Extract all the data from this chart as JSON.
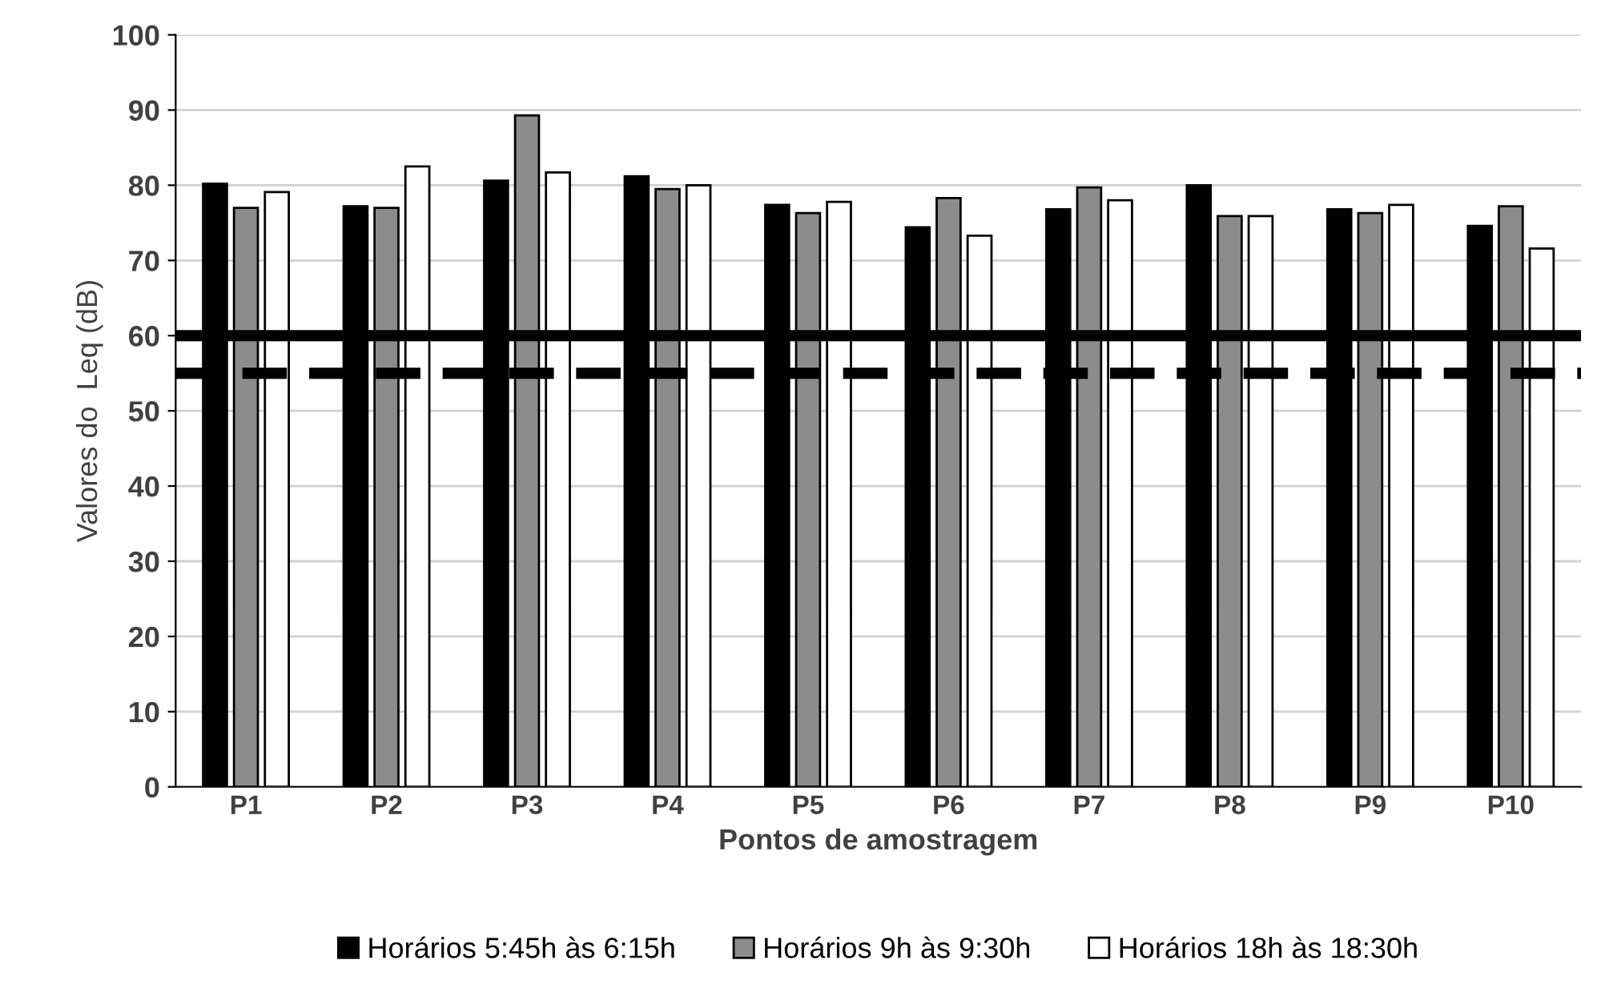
{
  "chart_data": {
    "type": "bar",
    "xlabel": "Pontos de amostragem",
    "ylabel": "Valores do  Leq (dB)",
    "categories": [
      "P1",
      "P2",
      "P3",
      "P4",
      "P5",
      "P6",
      "P7",
      "P8",
      "P9",
      "P10"
    ],
    "series": [
      {
        "name": "Horários 5:45h às 6:15h",
        "color": "#000000",
        "values": [
          80.2,
          77.2,
          80.6,
          81.2,
          77.4,
          74.4,
          76.8,
          80.0,
          76.8,
          74.6
        ]
      },
      {
        "name": "Horários 9h às 9:30h",
        "color": "#8c8c8c",
        "values": [
          77.0,
          77.0,
          89.3,
          79.5,
          76.3,
          78.3,
          79.7,
          75.9,
          76.3,
          77.2
        ]
      },
      {
        "name": "Horários 18h às 18:30h",
        "color": "#ffffff",
        "values": [
          79.1,
          82.5,
          81.7,
          80.0,
          77.8,
          73.3,
          78.0,
          75.9,
          77.4,
          71.6
        ]
      }
    ],
    "ylim": [
      0,
      100
    ],
    "yticks": [
      0,
      10,
      20,
      30,
      40,
      50,
      60,
      70,
      80,
      90,
      100
    ],
    "grid": "y",
    "legend": "bottom",
    "ref_lines": [
      {
        "axis": "y",
        "value": 60,
        "color": "#000000",
        "line_style": "solid"
      },
      {
        "axis": "y",
        "value": 55,
        "color": "#000000",
        "line_style": "dashed"
      }
    ]
  }
}
